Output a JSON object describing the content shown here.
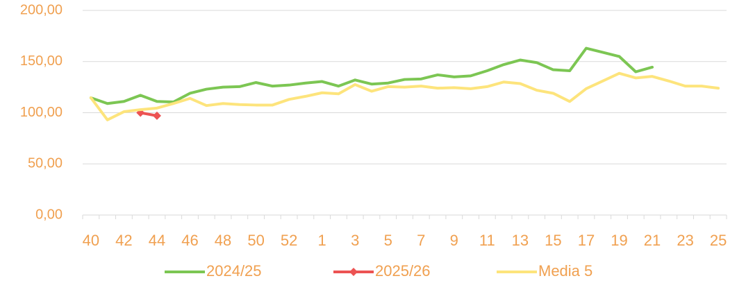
{
  "chart_data": {
    "type": "line",
    "categories": [
      "40",
      null,
      "42",
      null,
      "44",
      null,
      "46",
      null,
      "48",
      null,
      "50",
      null,
      "52",
      null,
      "1",
      null,
      "3",
      null,
      "5",
      null,
      "7",
      null,
      "9",
      null,
      "11",
      null,
      "13",
      null,
      "15",
      null,
      "17",
      null,
      "19",
      null,
      "21",
      null,
      "23",
      null,
      "25"
    ],
    "series": [
      {
        "name": "2024/25",
        "color": "#7cc653",
        "marker": "none",
        "values": [
          114.6,
          109,
          111,
          117,
          111,
          110.5,
          119,
          123,
          125,
          125.5,
          129.5,
          126,
          127,
          129,
          130.5,
          126,
          132,
          128,
          129,
          132.5,
          133,
          137,
          135,
          136,
          141,
          147,
          151.5,
          149,
          142,
          141,
          163,
          159,
          155,
          140,
          144.5,
          null,
          null,
          null,
          null
        ]
      },
      {
        "name": "2025/26",
        "color": "#ec5353",
        "marker": "diamond",
        "values": [
          null,
          null,
          null,
          100,
          97,
          null,
          null,
          null,
          null,
          null,
          null,
          null,
          null,
          null,
          null,
          null,
          null,
          null,
          null,
          null,
          null,
          null,
          null,
          null,
          null,
          null,
          null,
          null,
          null,
          null,
          null,
          null,
          null,
          null,
          null,
          null,
          null,
          null,
          null
        ]
      },
      {
        "name": "Media 5",
        "color": "#fde47c",
        "marker": "none",
        "values": [
          114.6,
          93,
          101,
          103,
          104.5,
          109,
          114,
          107,
          109,
          108,
          107.5,
          107.5,
          113,
          116,
          119.5,
          118.5,
          127.5,
          121,
          125.5,
          125,
          126,
          124,
          124.5,
          123.5,
          125.5,
          130,
          128.5,
          122,
          119,
          111,
          123.5,
          131,
          138.5,
          134,
          135.5,
          131,
          126,
          126,
          124
        ]
      }
    ],
    "ylim": [
      0,
      200
    ],
    "yticks": [
      {
        "value": 0,
        "label": "0,00"
      },
      {
        "value": 50,
        "label": "50,00"
      },
      {
        "value": 100,
        "label": "100,00"
      },
      {
        "value": 150,
        "label": "150,00"
      },
      {
        "value": 200,
        "label": "200,00"
      }
    ],
    "grid": true,
    "legend": "bottom"
  }
}
